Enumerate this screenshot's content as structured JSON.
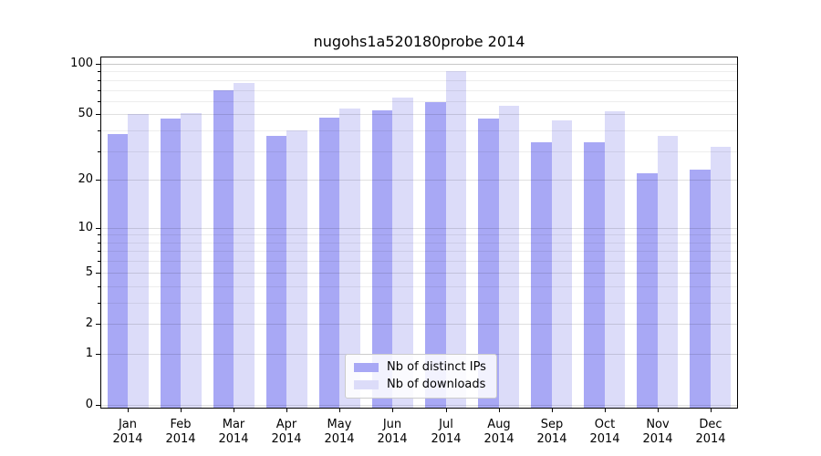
{
  "title": "nugohs1a520180probe 2014",
  "chart_data": {
    "type": "bar",
    "title": "nugohs1a520180probe 2014",
    "categories": [
      "Jan",
      "Feb",
      "Mar",
      "Apr",
      "May",
      "Jun",
      "Jul",
      "Aug",
      "Sep",
      "Oct",
      "Nov",
      "Dec"
    ],
    "year": "2014",
    "series": [
      {
        "name": "Nb of distinct IPs",
        "color": "#a8a8f5",
        "values": [
          38,
          47,
          70,
          37,
          48,
          53,
          59,
          47,
          34,
          34,
          22,
          23
        ]
      },
      {
        "name": "Nb of downloads",
        "color": "#dcdcf9",
        "values": [
          50,
          51,
          77,
          40,
          54,
          63,
          91,
          56,
          46,
          52,
          37,
          32
        ]
      }
    ],
    "y_scale": "log1p",
    "ylim": [
      0,
      109
    ],
    "y_axis": {
      "major_ticks": [
        0,
        1,
        2,
        5,
        10,
        20,
        50,
        100
      ],
      "minor_ticks": [
        3,
        4,
        6,
        7,
        8,
        9,
        30,
        40,
        60,
        70,
        80,
        90
      ],
      "emphasized_gridline": 100
    },
    "grid": true,
    "legend_position": "lower center"
  }
}
